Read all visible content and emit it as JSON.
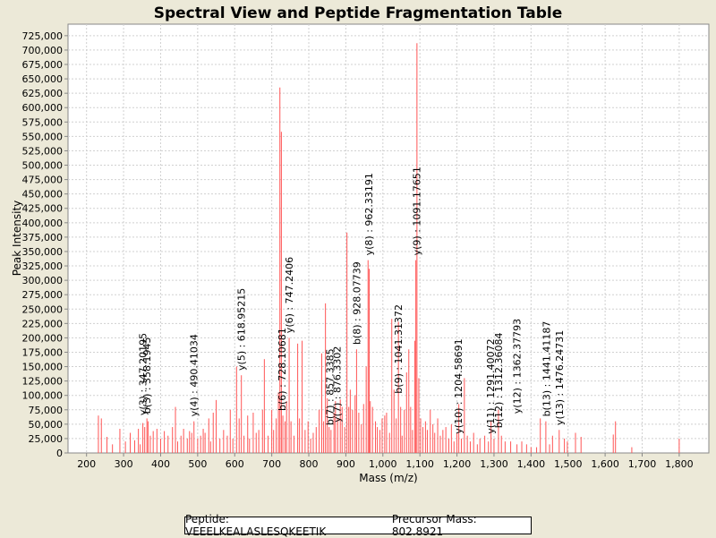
{
  "chart_data": {
    "type": "bar",
    "title": "Spectral View and Peptide Fragmentation Table",
    "xlabel": "Mass (m/z)",
    "ylabel": "Peak Intensity",
    "xlim": [
      150,
      1880
    ],
    "ylim": [
      0,
      745000
    ],
    "xticks": [
      200,
      300,
      400,
      500,
      600,
      700,
      800,
      900,
      1000,
      1100,
      1200,
      1300,
      1400,
      1500,
      1600,
      1700,
      1800
    ],
    "xtick_labels": [
      "200",
      "300",
      "400",
      "500",
      "600",
      "700",
      "800",
      "900",
      "1,000",
      "1,100",
      "1,200",
      "1,300",
      "1,400",
      "1,500",
      "1,600",
      "1,700",
      "1,800"
    ],
    "yticks": [
      0,
      25000,
      50000,
      75000,
      100000,
      125000,
      150000,
      175000,
      200000,
      225000,
      250000,
      275000,
      300000,
      325000,
      350000,
      375000,
      400000,
      425000,
      450000,
      475000,
      500000,
      525000,
      550000,
      575000,
      600000,
      625000,
      650000,
      675000,
      700000,
      725000
    ],
    "ytick_labels": [
      "0",
      "25,000",
      "50,000",
      "75,000",
      "100,000",
      "125,000",
      "150,000",
      "175,000",
      "200,000",
      "225,000",
      "250,000",
      "275,000",
      "300,000",
      "325,000",
      "350,000",
      "375,000",
      "400,000",
      "425,000",
      "450,000",
      "475,000",
      "500,000",
      "525,000",
      "550,000",
      "575,000",
      "600,000",
      "625,000",
      "650,000",
      "675,000",
      "700,000",
      "725,000"
    ],
    "peak_color": "#ff5555",
    "peaks": [
      [
        232,
        65000
      ],
      [
        240,
        60000
      ],
      [
        255,
        28000
      ],
      [
        270,
        15000
      ],
      [
        290,
        42000
      ],
      [
        305,
        20000
      ],
      [
        318,
        35000
      ],
      [
        330,
        22000
      ],
      [
        340,
        42000
      ],
      [
        345,
        15000
      ],
      [
        352,
        52000
      ],
      [
        357,
        45000
      ],
      [
        363,
        60000
      ],
      [
        366,
        55000
      ],
      [
        372,
        30000
      ],
      [
        380,
        38000
      ],
      [
        390,
        42000
      ],
      [
        400,
        25000
      ],
      [
        410,
        38000
      ],
      [
        420,
        30000
      ],
      [
        432,
        45000
      ],
      [
        440,
        80000
      ],
      [
        446,
        20000
      ],
      [
        455,
        30000
      ],
      [
        462,
        42000
      ],
      [
        472,
        25000
      ],
      [
        478,
        38000
      ],
      [
        484,
        35000
      ],
      [
        490,
        55000
      ],
      [
        500,
        25000
      ],
      [
        508,
        30000
      ],
      [
        515,
        42000
      ],
      [
        520,
        35000
      ],
      [
        530,
        60000
      ],
      [
        535,
        20000
      ],
      [
        542,
        70000
      ],
      [
        550,
        92000
      ],
      [
        560,
        25000
      ],
      [
        570,
        40000
      ],
      [
        580,
        30000
      ],
      [
        588,
        75000
      ],
      [
        595,
        25000
      ],
      [
        605,
        150000
      ],
      [
        612,
        60000
      ],
      [
        618,
        135000
      ],
      [
        625,
        30000
      ],
      [
        635,
        65000
      ],
      [
        640,
        25000
      ],
      [
        650,
        70000
      ],
      [
        658,
        35000
      ],
      [
        665,
        40000
      ],
      [
        675,
        75000
      ],
      [
        680,
        163000
      ],
      [
        690,
        30000
      ],
      [
        700,
        75000
      ],
      [
        705,
        40000
      ],
      [
        712,
        60000
      ],
      [
        718,
        105000
      ],
      [
        722,
        635000
      ],
      [
        726,
        558000
      ],
      [
        730,
        65000
      ],
      [
        736,
        55000
      ],
      [
        740,
        90000
      ],
      [
        747,
        200000
      ],
      [
        752,
        55000
      ],
      [
        760,
        30000
      ],
      [
        770,
        190000
      ],
      [
        775,
        60000
      ],
      [
        782,
        195000
      ],
      [
        790,
        40000
      ],
      [
        798,
        55000
      ],
      [
        805,
        25000
      ],
      [
        812,
        35000
      ],
      [
        820,
        45000
      ],
      [
        828,
        75000
      ],
      [
        835,
        173000
      ],
      [
        840,
        55000
      ],
      [
        845,
        260000
      ],
      [
        850,
        95000
      ],
      [
        855,
        45000
      ],
      [
        860,
        40000
      ],
      [
        868,
        70000
      ],
      [
        872,
        90000
      ],
      [
        878,
        60000
      ],
      [
        885,
        93000
      ],
      [
        890,
        80000
      ],
      [
        897,
        45000
      ],
      [
        903,
        383000
      ],
      [
        908,
        80000
      ],
      [
        912,
        110000
      ],
      [
        918,
        75000
      ],
      [
        925,
        100000
      ],
      [
        929,
        180000
      ],
      [
        935,
        70000
      ],
      [
        942,
        50000
      ],
      [
        948,
        85000
      ],
      [
        955,
        150000
      ],
      [
        960,
        335000
      ],
      [
        963,
        320000
      ],
      [
        966,
        90000
      ],
      [
        972,
        80000
      ],
      [
        980,
        55000
      ],
      [
        985,
        45000
      ],
      [
        992,
        40000
      ],
      [
        998,
        60000
      ],
      [
        1005,
        65000
      ],
      [
        1010,
        70000
      ],
      [
        1018,
        35000
      ],
      [
        1024,
        233000
      ],
      [
        1030,
        110000
      ],
      [
        1036,
        60000
      ],
      [
        1042,
        228000
      ],
      [
        1048,
        80000
      ],
      [
        1052,
        30000
      ],
      [
        1058,
        75000
      ],
      [
        1064,
        140000
      ],
      [
        1070,
        180000
      ],
      [
        1075,
        80000
      ],
      [
        1080,
        40000
      ],
      [
        1086,
        195000
      ],
      [
        1089,
        335000
      ],
      [
        1092,
        712000
      ],
      [
        1097,
        130000
      ],
      [
        1102,
        60000
      ],
      [
        1108,
        45000
      ],
      [
        1115,
        55000
      ],
      [
        1120,
        40000
      ],
      [
        1128,
        75000
      ],
      [
        1135,
        50000
      ],
      [
        1140,
        35000
      ],
      [
        1148,
        60000
      ],
      [
        1155,
        30000
      ],
      [
        1162,
        40000
      ],
      [
        1170,
        45000
      ],
      [
        1178,
        25000
      ],
      [
        1185,
        50000
      ],
      [
        1192,
        20000
      ],
      [
        1200,
        35000
      ],
      [
        1205,
        85000
      ],
      [
        1212,
        25000
      ],
      [
        1220,
        130000
      ],
      [
        1228,
        30000
      ],
      [
        1236,
        20000
      ],
      [
        1245,
        35000
      ],
      [
        1255,
        15000
      ],
      [
        1262,
        25000
      ],
      [
        1275,
        30000
      ],
      [
        1285,
        20000
      ],
      [
        1292,
        55000
      ],
      [
        1300,
        25000
      ],
      [
        1312,
        75000
      ],
      [
        1320,
        30000
      ],
      [
        1330,
        20000
      ],
      [
        1345,
        20000
      ],
      [
        1362,
        15000
      ],
      [
        1375,
        20000
      ],
      [
        1388,
        15000
      ],
      [
        1400,
        10000
      ],
      [
        1415,
        10000
      ],
      [
        1425,
        60000
      ],
      [
        1440,
        55000
      ],
      [
        1450,
        15000
      ],
      [
        1458,
        30000
      ],
      [
        1476,
        40000
      ],
      [
        1490,
        25000
      ],
      [
        1498,
        20000
      ],
      [
        1520,
        35000
      ],
      [
        1535,
        28000
      ],
      [
        1622,
        32000
      ],
      [
        1628,
        55000
      ],
      [
        1672,
        10000
      ],
      [
        1800,
        25000
      ]
    ],
    "fragment_labels": [
      {
        "label": "y(3) : 347.20195",
        "mz": 352,
        "y": 62000
      },
      {
        "label": "b(3) : 358.1945",
        "mz": 363,
        "y": 65000
      },
      {
        "label": "y(4) : 490.41034",
        "mz": 490,
        "y": 60000
      },
      {
        "label": "y(5) : 618.95215",
        "mz": 618,
        "y": 140000
      },
      {
        "label": "b(6) : 728.10681",
        "mz": 728,
        "y": 70000
      },
      {
        "label": "y(6) : 747.2406",
        "mz": 747,
        "y": 205000
      },
      {
        "label": "b(7) : 857.3385",
        "mz": 857,
        "y": 45000
      },
      {
        "label": "y(7) : 876.3302",
        "mz": 876,
        "y": 50000
      },
      {
        "label": "b(8) : 928.07739",
        "mz": 929,
        "y": 185000
      },
      {
        "label": "y(8) : 962.33191",
        "mz": 962,
        "y": 340000
      },
      {
        "label": "b(9) : 1041.31372",
        "mz": 1041,
        "y": 100000
      },
      {
        "label": "y(9) : 1091.17651",
        "mz": 1091,
        "y": 340000
      },
      {
        "label": "y(10) : 1204.58691",
        "mz": 1204,
        "y": 30000
      },
      {
        "label": "y(11) : 1291.40072",
        "mz": 1291,
        "y": 30000
      },
      {
        "label": "b(12) : 1312.36084",
        "mz": 1312,
        "y": 40000
      },
      {
        "label": "y(12) : 1362.37793",
        "mz": 1362,
        "y": 65000
      },
      {
        "label": "b(13) : 1441.41187",
        "mz": 1441,
        "y": 60000
      },
      {
        "label": "y(13) : 1476.24731",
        "mz": 1476,
        "y": 45000
      }
    ]
  },
  "footer": {
    "peptide": "Peptide: VEEELKEALASLESQKEETIK",
    "precursor": "Precursor Mass: 802.8921"
  }
}
